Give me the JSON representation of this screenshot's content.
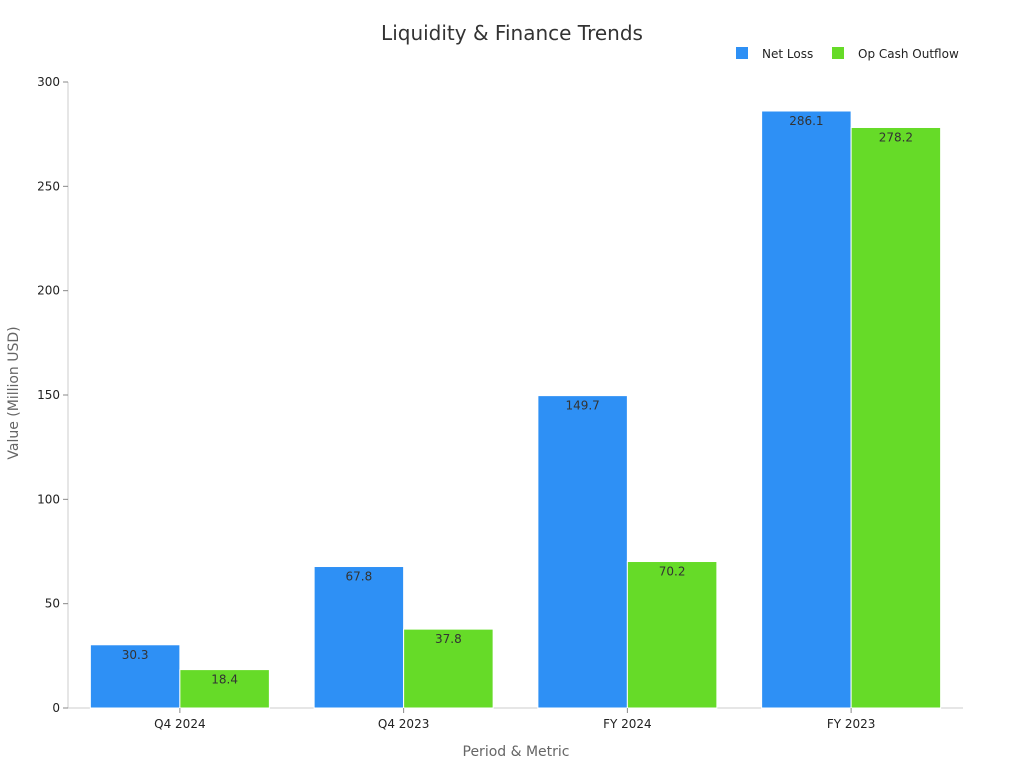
{
  "chart_data": {
    "type": "bar",
    "title": "Liquidity & Finance Trends",
    "xlabel": "Period & Metric",
    "ylabel": "Value (Million USD)",
    "categories": [
      "Q4 2024",
      "Q4 2023",
      "FY 2024",
      "FY 2023"
    ],
    "series": [
      {
        "name": "Net Loss",
        "color": "#2e90f5",
        "values": [
          30.3,
          67.8,
          149.7,
          286.1
        ]
      },
      {
        "name": "Op Cash Outflow",
        "color": "#66db28",
        "values": [
          18.4,
          37.8,
          70.2,
          278.2
        ]
      }
    ],
    "ylim": [
      0,
      300
    ],
    "yticks": [
      0,
      50,
      100,
      150,
      200,
      250,
      300
    ],
    "grid": false,
    "legend_position": "top-right"
  }
}
